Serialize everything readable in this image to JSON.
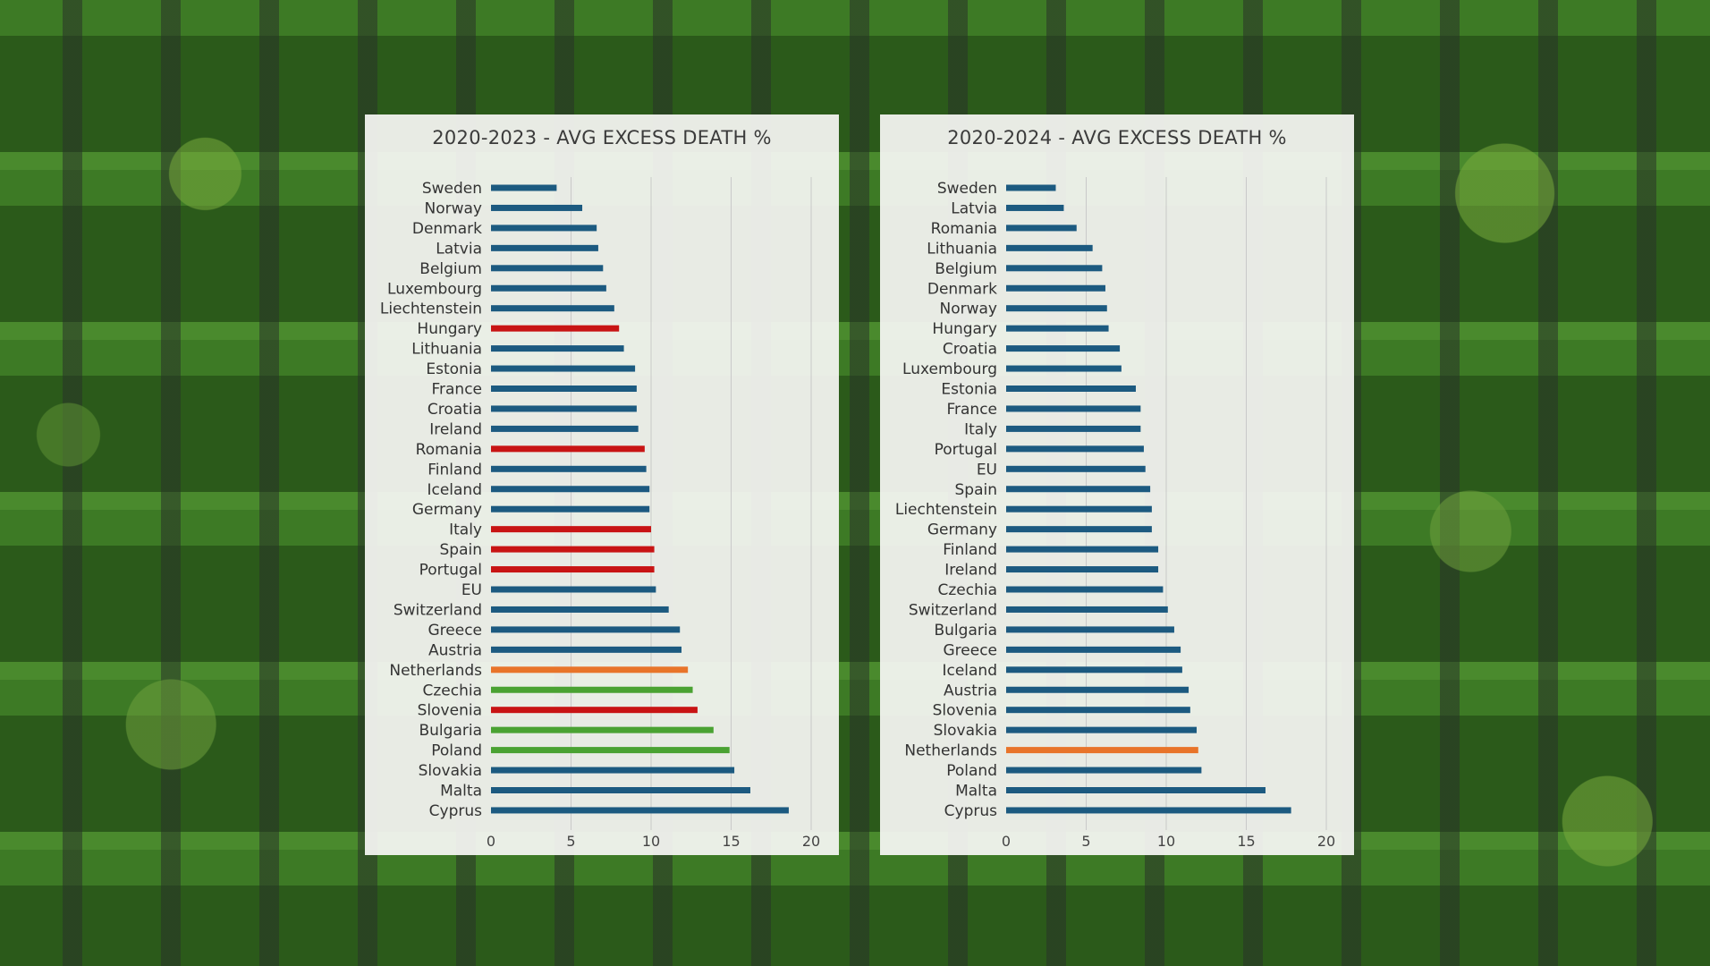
{
  "chart_data": [
    {
      "type": "bar",
      "orientation": "horizontal",
      "title": "2020-2023 - AVG EXCESS DEATH %",
      "xlim": [
        0,
        20
      ],
      "x_ticks": [
        0,
        5,
        10,
        15,
        20
      ],
      "grid": true,
      "categories": [
        "Sweden",
        "Norway",
        "Denmark",
        "Latvia",
        "Belgium",
        "Luxembourg",
        "Liechtenstein",
        "Hungary",
        "Lithuania",
        "Estonia",
        "France",
        "Croatia",
        "Ireland",
        "Romania",
        "Finland",
        "Iceland",
        "Germany",
        "Italy",
        "Spain",
        "Portugal",
        "EU",
        "Switzerland",
        "Greece",
        "Austria",
        "Netherlands",
        "Czechia",
        "Slovenia",
        "Bulgaria",
        "Poland",
        "Slovakia",
        "Malta",
        "Cyprus"
      ],
      "values": [
        4.1,
        5.7,
        6.6,
        6.7,
        7.0,
        7.2,
        7.7,
        8.0,
        8.3,
        9.0,
        9.1,
        9.1,
        9.2,
        9.6,
        9.7,
        9.9,
        9.9,
        10.0,
        10.2,
        10.2,
        10.3,
        11.1,
        11.8,
        11.9,
        12.3,
        12.6,
        12.9,
        13.9,
        14.9,
        15.2,
        16.2,
        18.6
      ],
      "colors": [
        "#1c5a80",
        "#1c5a80",
        "#1c5a80",
        "#1c5a80",
        "#1c5a80",
        "#1c5a80",
        "#1c5a80",
        "#c81414",
        "#1c5a80",
        "#1c5a80",
        "#1c5a80",
        "#1c5a80",
        "#1c5a80",
        "#c81414",
        "#1c5a80",
        "#1c5a80",
        "#1c5a80",
        "#c81414",
        "#c81414",
        "#c81414",
        "#1c5a80",
        "#1c5a80",
        "#1c5a80",
        "#1c5a80",
        "#e8742a",
        "#4aa232",
        "#c81414",
        "#4aa232",
        "#4aa232",
        "#1c5a80",
        "#1c5a80",
        "#1c5a80"
      ]
    },
    {
      "type": "bar",
      "orientation": "horizontal",
      "title": "2020-2024 - AVG EXCESS DEATH %",
      "xlim": [
        0,
        20
      ],
      "x_ticks": [
        0,
        5,
        10,
        15,
        20
      ],
      "grid": true,
      "categories": [
        "Sweden",
        "Latvia",
        "Romania",
        "Lithuania",
        "Belgium",
        "Denmark",
        "Norway",
        "Hungary",
        "Croatia",
        "Luxembourg",
        "Estonia",
        "France",
        "Italy",
        "Portugal",
        "EU",
        "Spain",
        "Liechtenstein",
        "Germany",
        "Finland",
        "Ireland",
        "Czechia",
        "Switzerland",
        "Bulgaria",
        "Greece",
        "Iceland",
        "Austria",
        "Slovenia",
        "Slovakia",
        "Netherlands",
        "Poland",
        "Malta",
        "Cyprus"
      ],
      "values": [
        3.1,
        3.6,
        4.4,
        5.4,
        6.0,
        6.2,
        6.3,
        6.4,
        7.1,
        7.2,
        8.1,
        8.4,
        8.4,
        8.6,
        8.7,
        9.0,
        9.1,
        9.1,
        9.5,
        9.5,
        9.8,
        10.1,
        10.5,
        10.9,
        11.0,
        11.4,
        11.5,
        11.9,
        12.0,
        12.2,
        16.2,
        17.8
      ],
      "colors": [
        "#1c5a80",
        "#1c5a80",
        "#1c5a80",
        "#1c5a80",
        "#1c5a80",
        "#1c5a80",
        "#1c5a80",
        "#1c5a80",
        "#1c5a80",
        "#1c5a80",
        "#1c5a80",
        "#1c5a80",
        "#1c5a80",
        "#1c5a80",
        "#1c5a80",
        "#1c5a80",
        "#1c5a80",
        "#1c5a80",
        "#1c5a80",
        "#1c5a80",
        "#1c5a80",
        "#1c5a80",
        "#1c5a80",
        "#1c5a80",
        "#1c5a80",
        "#1c5a80",
        "#1c5a80",
        "#1c5a80",
        "#e8742a",
        "#1c5a80",
        "#1c5a80",
        "#1c5a80"
      ]
    }
  ]
}
